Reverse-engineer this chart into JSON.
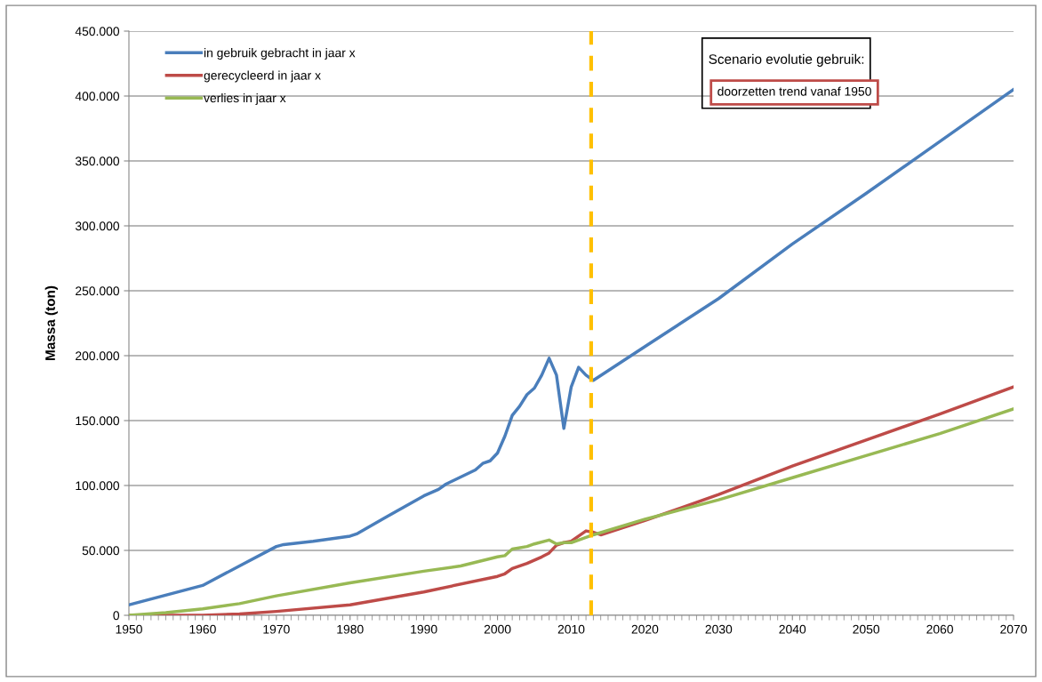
{
  "chart_data": {
    "type": "line",
    "ylabel": "Massa (ton)",
    "xlim": [
      1950,
      2070
    ],
    "xticks": [
      1950,
      1960,
      1970,
      1980,
      1990,
      2000,
      2010,
      2020,
      2030,
      2040,
      2050,
      2060,
      2070
    ],
    "ylim": [
      0,
      450000
    ],
    "yticks": [
      {
        "value": 0,
        "label": "0"
      },
      {
        "value": 50000,
        "label": "50.000"
      },
      {
        "value": 100000,
        "label": "100.000"
      },
      {
        "value": 150000,
        "label": "150.000"
      },
      {
        "value": 200000,
        "label": "200.000"
      },
      {
        "value": 250000,
        "label": "250.000"
      },
      {
        "value": 300000,
        "label": "300.000"
      },
      {
        "value": 350000,
        "label": "350.000"
      },
      {
        "value": 400000,
        "label": "400.000"
      },
      {
        "value": 450000,
        "label": "450.000"
      }
    ],
    "grid": "y",
    "legend": "top left",
    "marker": "none",
    "line_style": "solid",
    "series": [
      {
        "name": "in gebruik gebracht in jaar x",
        "color": "#4a7ebb",
        "x": [
          1950,
          1960,
          1965,
          1970,
          1971,
          1975,
          1980,
          1981,
          1985,
          1990,
          1992,
          1993,
          1997,
          1998,
          1999,
          2000,
          2001,
          2002,
          2003,
          2004,
          2005,
          2006,
          2007,
          2008,
          2009,
          2010,
          2011,
          2012,
          2013,
          2020,
          2030,
          2040,
          2050,
          2060,
          2070
        ],
        "values": [
          8000,
          23000,
          38000,
          53000,
          54500,
          57000,
          61000,
          63000,
          76000,
          92000,
          97000,
          101000,
          112000,
          117000,
          119000,
          125000,
          138000,
          154000,
          161000,
          170000,
          175000,
          185000,
          198000,
          185000,
          144000,
          176000,
          191000,
          185000,
          181000,
          207000,
          244000,
          286000,
          325000,
          365000,
          405000
        ]
      },
      {
        "name": "gerecycleerd in jaar x",
        "color": "#be4b48",
        "x": [
          1950,
          1960,
          1965,
          1970,
          1980,
          1990,
          2000,
          2001,
          2002,
          2004,
          2006,
          2007,
          2008,
          2009,
          2010,
          2011,
          2012,
          2013,
          2014,
          2020,
          2030,
          2040,
          2050,
          2060,
          2070
        ],
        "values": [
          0,
          0,
          1000,
          3000,
          8000,
          18000,
          30000,
          32000,
          36000,
          40000,
          45000,
          48000,
          54000,
          56000,
          57000,
          61000,
          65000,
          64000,
          62000,
          73000,
          93000,
          115000,
          135000,
          155000,
          176000
        ]
      },
      {
        "name": "verlies in jaar x",
        "color": "#98b954",
        "x": [
          1950,
          1955,
          1960,
          1965,
          1970,
          1980,
          1990,
          1995,
          2000,
          2001,
          2002,
          2004,
          2005,
          2007,
          2008,
          2009,
          2010,
          2011,
          2012,
          2013,
          2020,
          2030,
          2040,
          2050,
          2060,
          2070
        ],
        "values": [
          0,
          2000,
          5000,
          9000,
          15000,
          25000,
          34000,
          38000,
          45000,
          46000,
          51000,
          53000,
          55000,
          58000,
          55000,
          56000,
          56000,
          58000,
          60000,
          62000,
          74000,
          89000,
          106000,
          123000,
          140000,
          159000
        ]
      }
    ],
    "ref_lines": [
      {
        "axis": "x",
        "value": 2012.7,
        "color": "#ffc000",
        "line_style": "dashed"
      }
    ],
    "annotations": [
      "Scenario evolutie gebruik:",
      "doorzetten trend vanaf 1950"
    ]
  }
}
